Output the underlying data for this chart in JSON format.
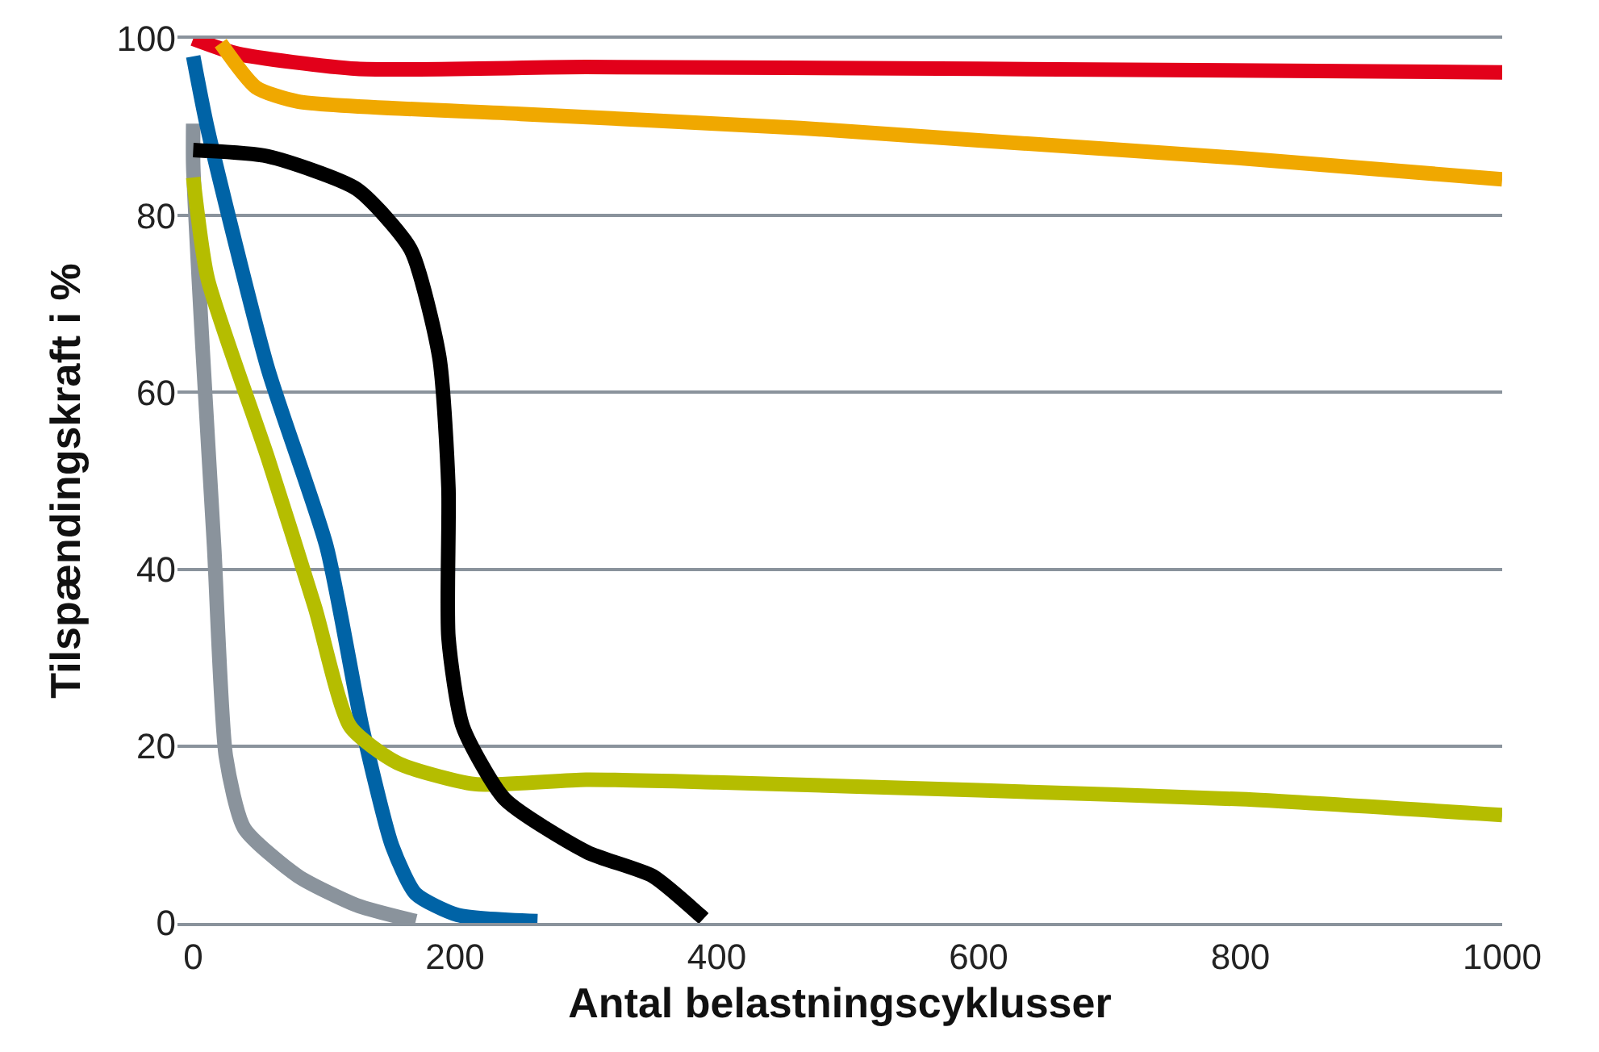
{
  "chart_data": {
    "type": "line",
    "xlabel": "Antal belastningscyklusser",
    "ylabel": "Tilspændingskraft i %",
    "xlim": [
      -12,
      1000
    ],
    "xticks": [
      0,
      200,
      400,
      600,
      800,
      1000
    ],
    "ylim": [
      0,
      100
    ],
    "yticks": [
      0,
      20,
      40,
      60,
      80,
      100
    ],
    "grid": "y",
    "marker": "none",
    "line_style": "solid",
    "series": [
      {
        "color": "#e2001a",
        "x": [
          0,
          34,
          125,
          300,
          600,
          1000
        ],
        "values": [
          100,
          98.3,
          96.6,
          96.8,
          96.6,
          96.2
        ]
      },
      {
        "color": "#f0a800",
        "x": [
          21,
          48,
          80,
          250,
          464,
          600,
          800,
          1000
        ],
        "values": [
          99.5,
          94.5,
          92.9,
          91.5,
          89.9,
          88.5,
          86.5,
          84.1
        ]
      },
      {
        "color": "#8a939c",
        "x": [
          0,
          0,
          7,
          16,
          25,
          39,
          80,
          125,
          170
        ],
        "values": [
          90.4,
          85.7,
          65.4,
          42.5,
          18.8,
          10.7,
          5.3,
          2,
          0.2
        ]
      },
      {
        "color": "#0063a6",
        "x": [
          0,
          11,
          57,
          102,
          129,
          152,
          170,
          202,
          263
        ],
        "values": [
          98,
          89.8,
          62.7,
          42.5,
          22.2,
          8.7,
          3.3,
          0.9,
          0.2
        ]
      },
      {
        "color": "#b5bd00",
        "x": [
          0,
          11,
          57,
          93,
          120,
          156,
          215,
          300,
          400,
          600,
          800,
          1000
        ],
        "values": [
          84.3,
          72.9,
          52.6,
          35.7,
          22.2,
          18.1,
          15.7,
          16.2,
          15.9,
          15,
          14,
          12.2
        ]
      },
      {
        "color": "#000000",
        "x": [
          0,
          57,
          125,
          166,
          188,
          195,
          195,
          206,
          238,
          301,
          351,
          387,
          390
        ],
        "values": [
          87.4,
          86.7,
          83,
          76.2,
          64,
          49.2,
          32.3,
          22.2,
          14,
          8,
          5.3,
          0.9,
          0.5
        ]
      }
    ]
  }
}
